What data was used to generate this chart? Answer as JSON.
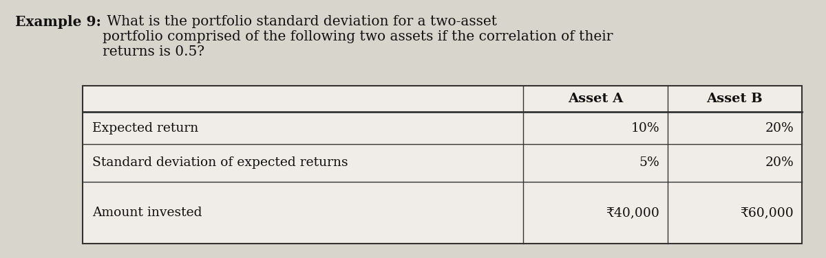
{
  "title_bold": "Example 9:",
  "title_normal": " What is the portfolio standard deviation for a two-asset\nportfolio comprised of the following two assets if the correlation of their\nreturns is 0.5?",
  "col_headers": [
    "Asset A",
    "Asset B"
  ],
  "row_labels": [
    "Expected return",
    "Standard deviation of expected returns",
    "Amount invested"
  ],
  "asset_a_values": [
    "10%",
    "5%",
    "₹40,000"
  ],
  "asset_b_values": [
    "20%",
    "20%",
    "₹60,000"
  ],
  "bg_color": "#d8d5cc",
  "table_bg": "#f0ede8",
  "text_color": "#111111",
  "title_fontsize": 14.5,
  "table_fontsize": 13.5,
  "header_fontsize": 14
}
